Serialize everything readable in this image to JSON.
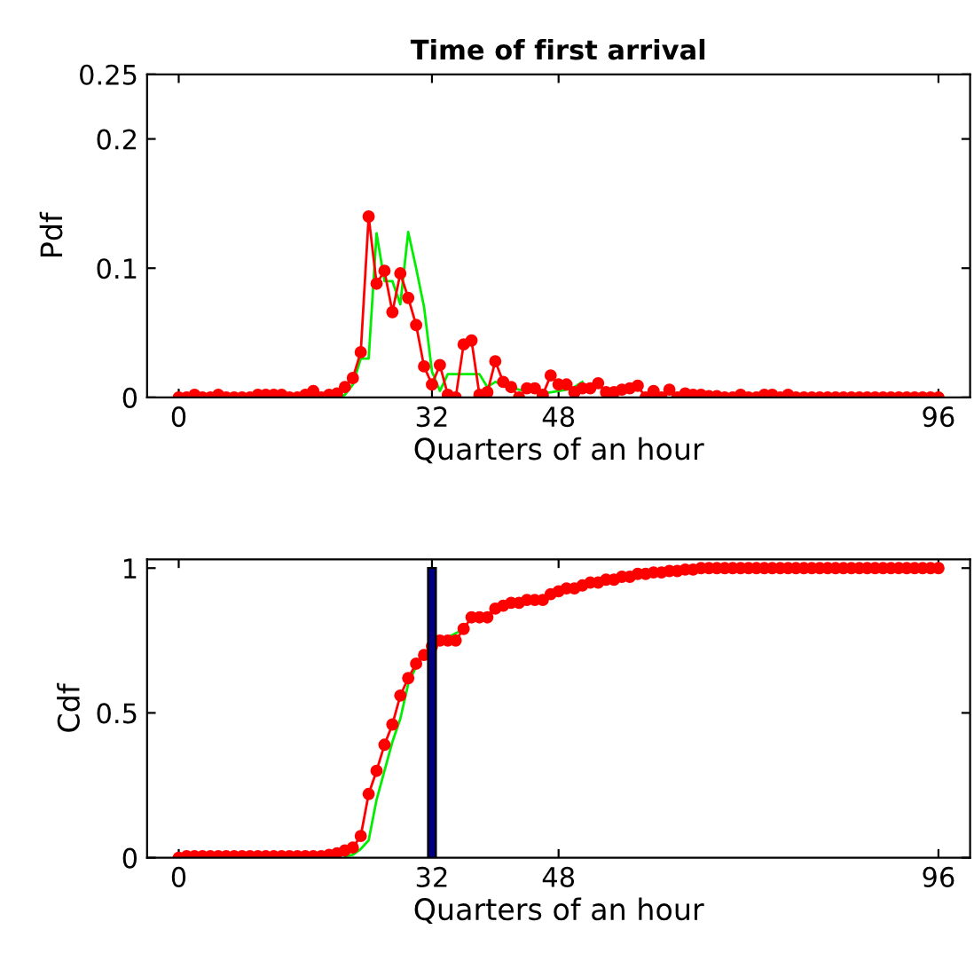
{
  "chart_data": [
    {
      "type": "line",
      "title": "Time of first arrival",
      "xlabel": "Quarters of an hour",
      "ylabel": "Pdf",
      "xlim": [
        -4,
        100
      ],
      "xticks": [
        0,
        32,
        48,
        96
      ],
      "ylim": [
        0,
        0.25
      ],
      "yticks": [
        0,
        0.1,
        0.2,
        0.25
      ],
      "grid": false,
      "marker": "circle",
      "series": [
        {
          "color": "#00ee00",
          "marker": "none",
          "x": [
            0,
            20,
            21,
            22,
            23,
            24,
            25,
            26,
            27,
            28,
            29,
            30,
            31,
            32,
            33,
            34,
            35,
            36,
            37,
            38,
            39,
            40,
            41,
            42,
            43,
            44,
            45,
            46,
            47,
            48,
            49,
            50,
            51
          ],
          "values": [
            0,
            0,
            0.002,
            0.01,
            0.03,
            0.03,
            0.127,
            0.09,
            0.09,
            0.072,
            0.128,
            0.1,
            0.07,
            0.02,
            0.005,
            0.018,
            0.018,
            0.018,
            0.018,
            0.018,
            0.008,
            0.012,
            0.01,
            0.008,
            0.006,
            0.005,
            0.004,
            0.003,
            0.004,
            0.005,
            0.006,
            0.008,
            0.012
          ]
        },
        {
          "color": "#ff0000",
          "x": [
            0,
            1,
            2,
            3,
            4,
            5,
            6,
            7,
            8,
            9,
            10,
            11,
            12,
            13,
            14,
            15,
            16,
            17,
            18,
            19,
            20,
            21,
            22,
            23,
            24,
            25,
            26,
            27,
            28,
            29,
            30,
            31,
            32,
            33,
            34,
            35,
            36,
            37,
            38,
            39,
            40,
            41,
            42,
            43,
            44,
            45,
            46,
            47,
            48,
            49,
            50,
            51,
            52,
            53,
            54,
            55,
            56,
            57,
            58,
            59,
            60,
            61,
            62,
            63,
            64,
            65,
            66,
            67,
            68,
            69,
            70,
            71,
            72,
            73,
            74,
            75,
            76,
            77,
            78,
            79,
            80,
            81,
            82,
            83,
            84,
            85,
            86,
            87,
            88,
            89,
            90,
            91,
            92,
            93,
            94,
            95,
            96
          ],
          "values": [
            0,
            0,
            0.002,
            0,
            0,
            0.002,
            0,
            0,
            0,
            0,
            0.002,
            0.002,
            0.002,
            0.002,
            0,
            0,
            0.002,
            0.005,
            0,
            0.002,
            0.003,
            0.008,
            0.015,
            0.035,
            0.14,
            0.088,
            0.098,
            0.066,
            0.096,
            0.077,
            0.056,
            0.024,
            0.01,
            0.025,
            0.002,
            0,
            0.041,
            0.044,
            0.002,
            0.004,
            0.028,
            0.012,
            0.008,
            0,
            0.007,
            0.007,
            0.002,
            0.017,
            0.01,
            0.01,
            0.004,
            0.007,
            0.007,
            0.011,
            0.004,
            0.004,
            0.006,
            0.007,
            0.009,
            0,
            0.005,
            0,
            0.006,
            0,
            0.003,
            0.002,
            0.002,
            0.001,
            0.001,
            0,
            0,
            0.002,
            0,
            0,
            0.002,
            0.002,
            0,
            0.002,
            0,
            0,
            0,
            0,
            0,
            0,
            0,
            0,
            0,
            0,
            0,
            0,
            0,
            0,
            0,
            0,
            0,
            0,
            0
          ]
        }
      ]
    },
    {
      "type": "line",
      "xlabel": "Quarters of an hour",
      "ylabel": "Cdf",
      "xlim": [
        -4,
        100
      ],
      "xticks": [
        0,
        32,
        48,
        96
      ],
      "ylim": [
        0,
        1.03
      ],
      "yticks": [
        0,
        0.5,
        1
      ],
      "grid": false,
      "marker": "circle",
      "series": [
        {
          "color": "#00ee00",
          "marker": "none",
          "x": [
            21,
            22,
            23,
            24,
            25,
            26,
            27,
            28,
            29,
            30,
            31,
            32,
            33,
            34,
            36
          ],
          "values": [
            0.005,
            0.01,
            0.03,
            0.06,
            0.2,
            0.3,
            0.4,
            0.48,
            0.6,
            0.66,
            null,
            null,
            null,
            0.76,
            0.79
          ]
        },
        {
          "color": "#ff0000",
          "x": [
            0,
            1,
            2,
            3,
            4,
            5,
            6,
            7,
            8,
            9,
            10,
            11,
            12,
            13,
            14,
            15,
            16,
            17,
            18,
            19,
            20,
            21,
            22,
            23,
            24,
            25,
            26,
            27,
            28,
            29,
            30,
            31,
            32,
            33,
            34,
            35,
            36,
            37,
            38,
            39,
            40,
            41,
            42,
            43,
            44,
            45,
            46,
            47,
            48,
            49,
            50,
            51,
            52,
            53,
            54,
            55,
            56,
            57,
            58,
            59,
            60,
            61,
            62,
            63,
            64,
            65,
            66,
            67,
            68,
            69,
            70,
            71,
            72,
            73,
            74,
            75,
            76,
            77,
            78,
            79,
            80,
            81,
            82,
            83,
            84,
            85,
            86,
            87,
            88,
            89,
            90,
            91,
            92,
            93,
            94,
            95,
            96
          ],
          "values": [
            0,
            0.005,
            0.005,
            0.005,
            0.005,
            0.005,
            0.005,
            0.005,
            0.005,
            0.005,
            0.005,
            0.005,
            0.005,
            0.005,
            0.005,
            0.005,
            0.005,
            0.005,
            0.005,
            0.01,
            0.015,
            0.025,
            0.035,
            0.075,
            0.22,
            0.3,
            0.39,
            0.46,
            0.56,
            0.62,
            0.67,
            0.7,
            0.73,
            0.75,
            0.75,
            0.75,
            0.79,
            0.83,
            0.83,
            0.83,
            0.86,
            0.87,
            0.88,
            0.88,
            0.89,
            0.89,
            0.89,
            0.91,
            0.92,
            0.93,
            0.93,
            0.94,
            0.95,
            0.95,
            0.96,
            0.96,
            0.97,
            0.97,
            0.98,
            0.98,
            0.985,
            0.985,
            0.99,
            0.99,
            0.995,
            0.995,
            1,
            1,
            1,
            1,
            1,
            1,
            1,
            1,
            1,
            1,
            1,
            1,
            1,
            1,
            1,
            1,
            1,
            1,
            1,
            1,
            1,
            1,
            1,
            1,
            1,
            1,
            1,
            1,
            1,
            1,
            1
          ]
        },
        {
          "type": "bar",
          "color": "#000080",
          "marker": "none",
          "x": [
            32
          ],
          "values": [
            1
          ]
        }
      ]
    }
  ]
}
